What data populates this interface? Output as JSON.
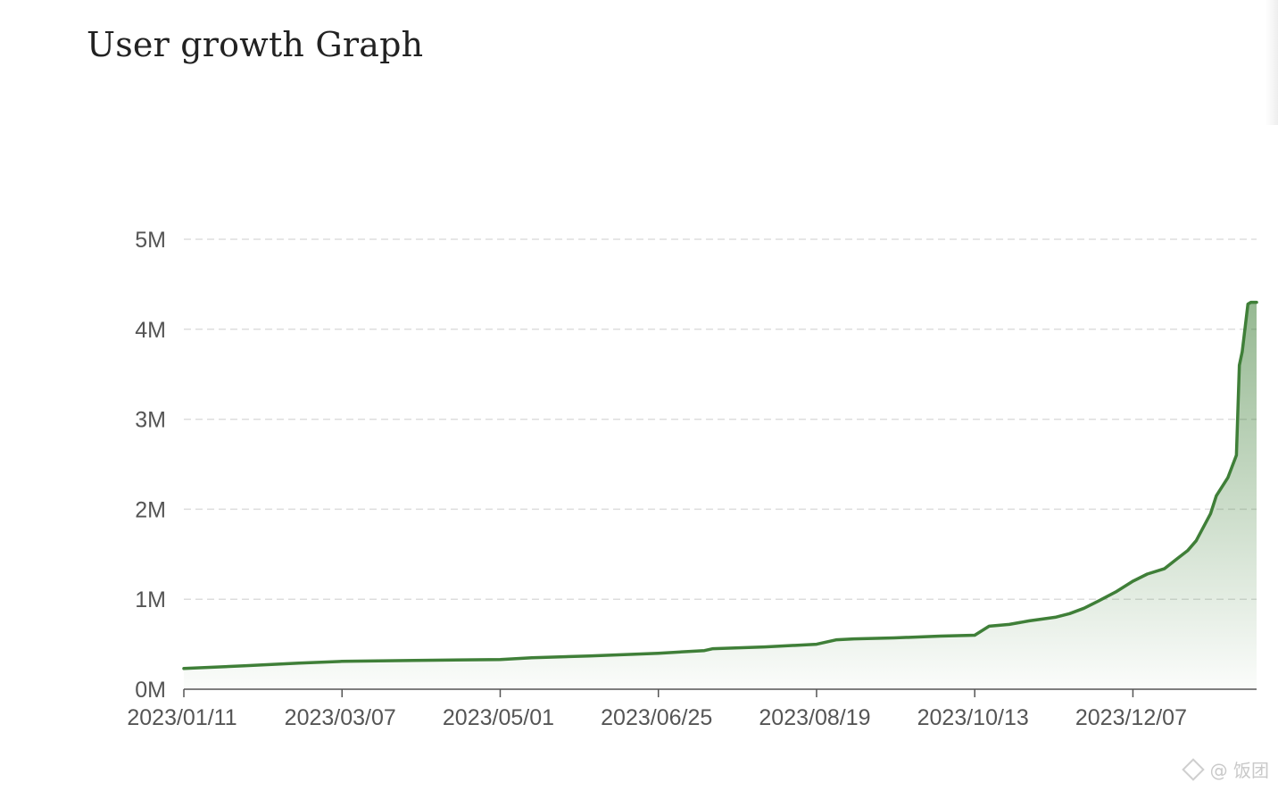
{
  "page": {
    "title": "User growth Graph",
    "watermark": "@ 饭团"
  },
  "colors": {
    "line": "#3f7f38",
    "area_top": "#3f7f38",
    "grid": "#dddddd",
    "axis": "#555555",
    "tick_text": "#555555"
  },
  "chart_data": {
    "type": "area",
    "title": "User growth Graph",
    "xlabel": "",
    "ylabel": "",
    "x_ticks": [
      "2023/01/11",
      "2023/03/07",
      "2023/05/01",
      "2023/06/25",
      "2023/08/19",
      "2023/10/13",
      "2023/12/07"
    ],
    "y_ticks": [
      "0M",
      "1M",
      "2M",
      "3M",
      "4M",
      "5M"
    ],
    "ylim": [
      0,
      5000000
    ],
    "xlim": [
      "2023/01/11",
      "2024/01/19"
    ],
    "grid": "horizontal dashed",
    "legend": "none",
    "series": [
      {
        "x": [
          "2023/01/11",
          "2023/02/01",
          "2023/02/20",
          "2023/03/07",
          "2023/04/01",
          "2023/05/01",
          "2023/05/12",
          "2023/06/01",
          "2023/06/25",
          "2023/07/11",
          "2023/07/14",
          "2023/08/01",
          "2023/08/19",
          "2023/08/26",
          "2023/09/01",
          "2023/09/15",
          "2023/10/01",
          "2023/10/13",
          "2023/10/18",
          "2023/10/25",
          "2023/11/01",
          "2023/11/10",
          "2023/11/15",
          "2023/11/20",
          "2023/11/25",
          "2023/12/01",
          "2023/12/07",
          "2023/12/12",
          "2023/12/18",
          "2023/12/22",
          "2023/12/26",
          "2023/12/29",
          "2024/01/03",
          "2024/01/05",
          "2024/01/09",
          "2024/01/12",
          "2024/01/13",
          "2024/01/14",
          "2024/01/16",
          "2024/01/17",
          "2024/01/19"
        ],
        "values": [
          230000,
          260000,
          290000,
          310000,
          320000,
          330000,
          350000,
          370000,
          400000,
          430000,
          450000,
          470000,
          500000,
          550000,
          560000,
          570000,
          590000,
          600000,
          700000,
          720000,
          760000,
          800000,
          840000,
          900000,
          980000,
          1080000,
          1200000,
          1280000,
          1340000,
          1440000,
          1540000,
          1650000,
          1950000,
          2150000,
          2350000,
          2600000,
          3600000,
          3750000,
          4280000,
          4300000,
          4300000
        ]
      }
    ]
  }
}
